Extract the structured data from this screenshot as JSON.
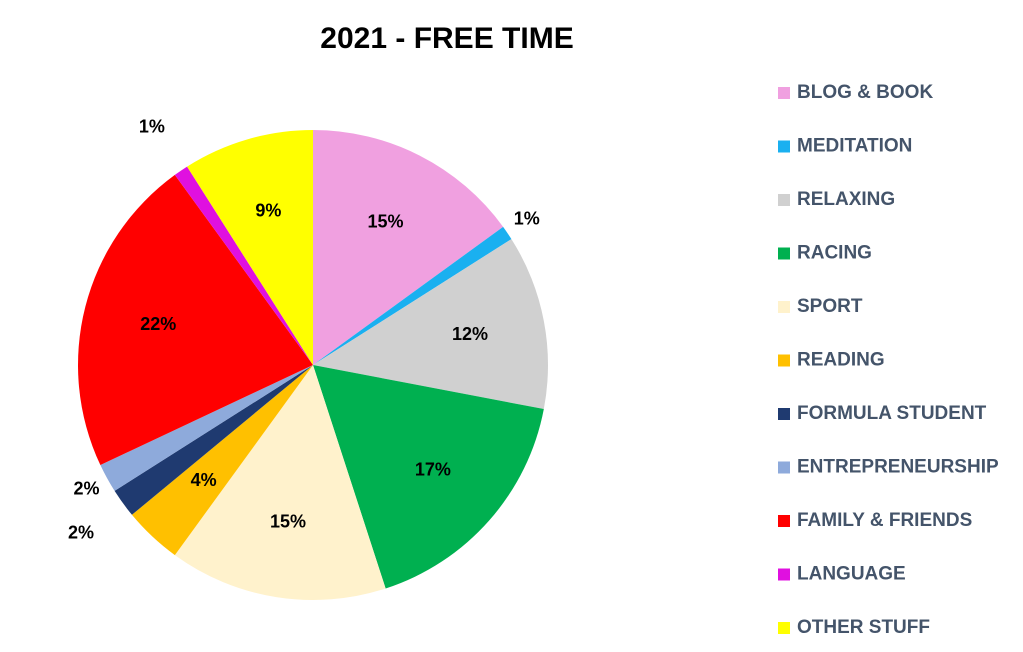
{
  "chart_data": {
    "type": "pie",
    "title": "2021 - FREE TIME",
    "categories": [
      "BLOG & BOOK",
      "MEDITATION",
      "RELAXING",
      "RACING",
      "SPORT",
      "READING",
      "FORMULA STUDENT",
      "ENTREPRENEURSHIP",
      "FAMILY & FRIENDS",
      "LANGUAGE",
      "OTHER STUFF"
    ],
    "values": [
      15,
      1,
      12,
      17,
      15,
      4,
      2,
      2,
      22,
      1,
      9
    ],
    "value_labels": [
      "15%",
      "1%",
      "12%",
      "17%",
      "15%",
      "4%",
      "2%",
      "2%",
      "22%",
      "1%",
      "9%"
    ],
    "colors": [
      "#f0a0e0",
      "#1ab0f0",
      "#d0d0d0",
      "#00b050",
      "#fff2cc",
      "#ffc000",
      "#1f3a70",
      "#8eaadb",
      "#ff0000",
      "#e010e0",
      "#ffff00"
    ],
    "legend": "right"
  }
}
